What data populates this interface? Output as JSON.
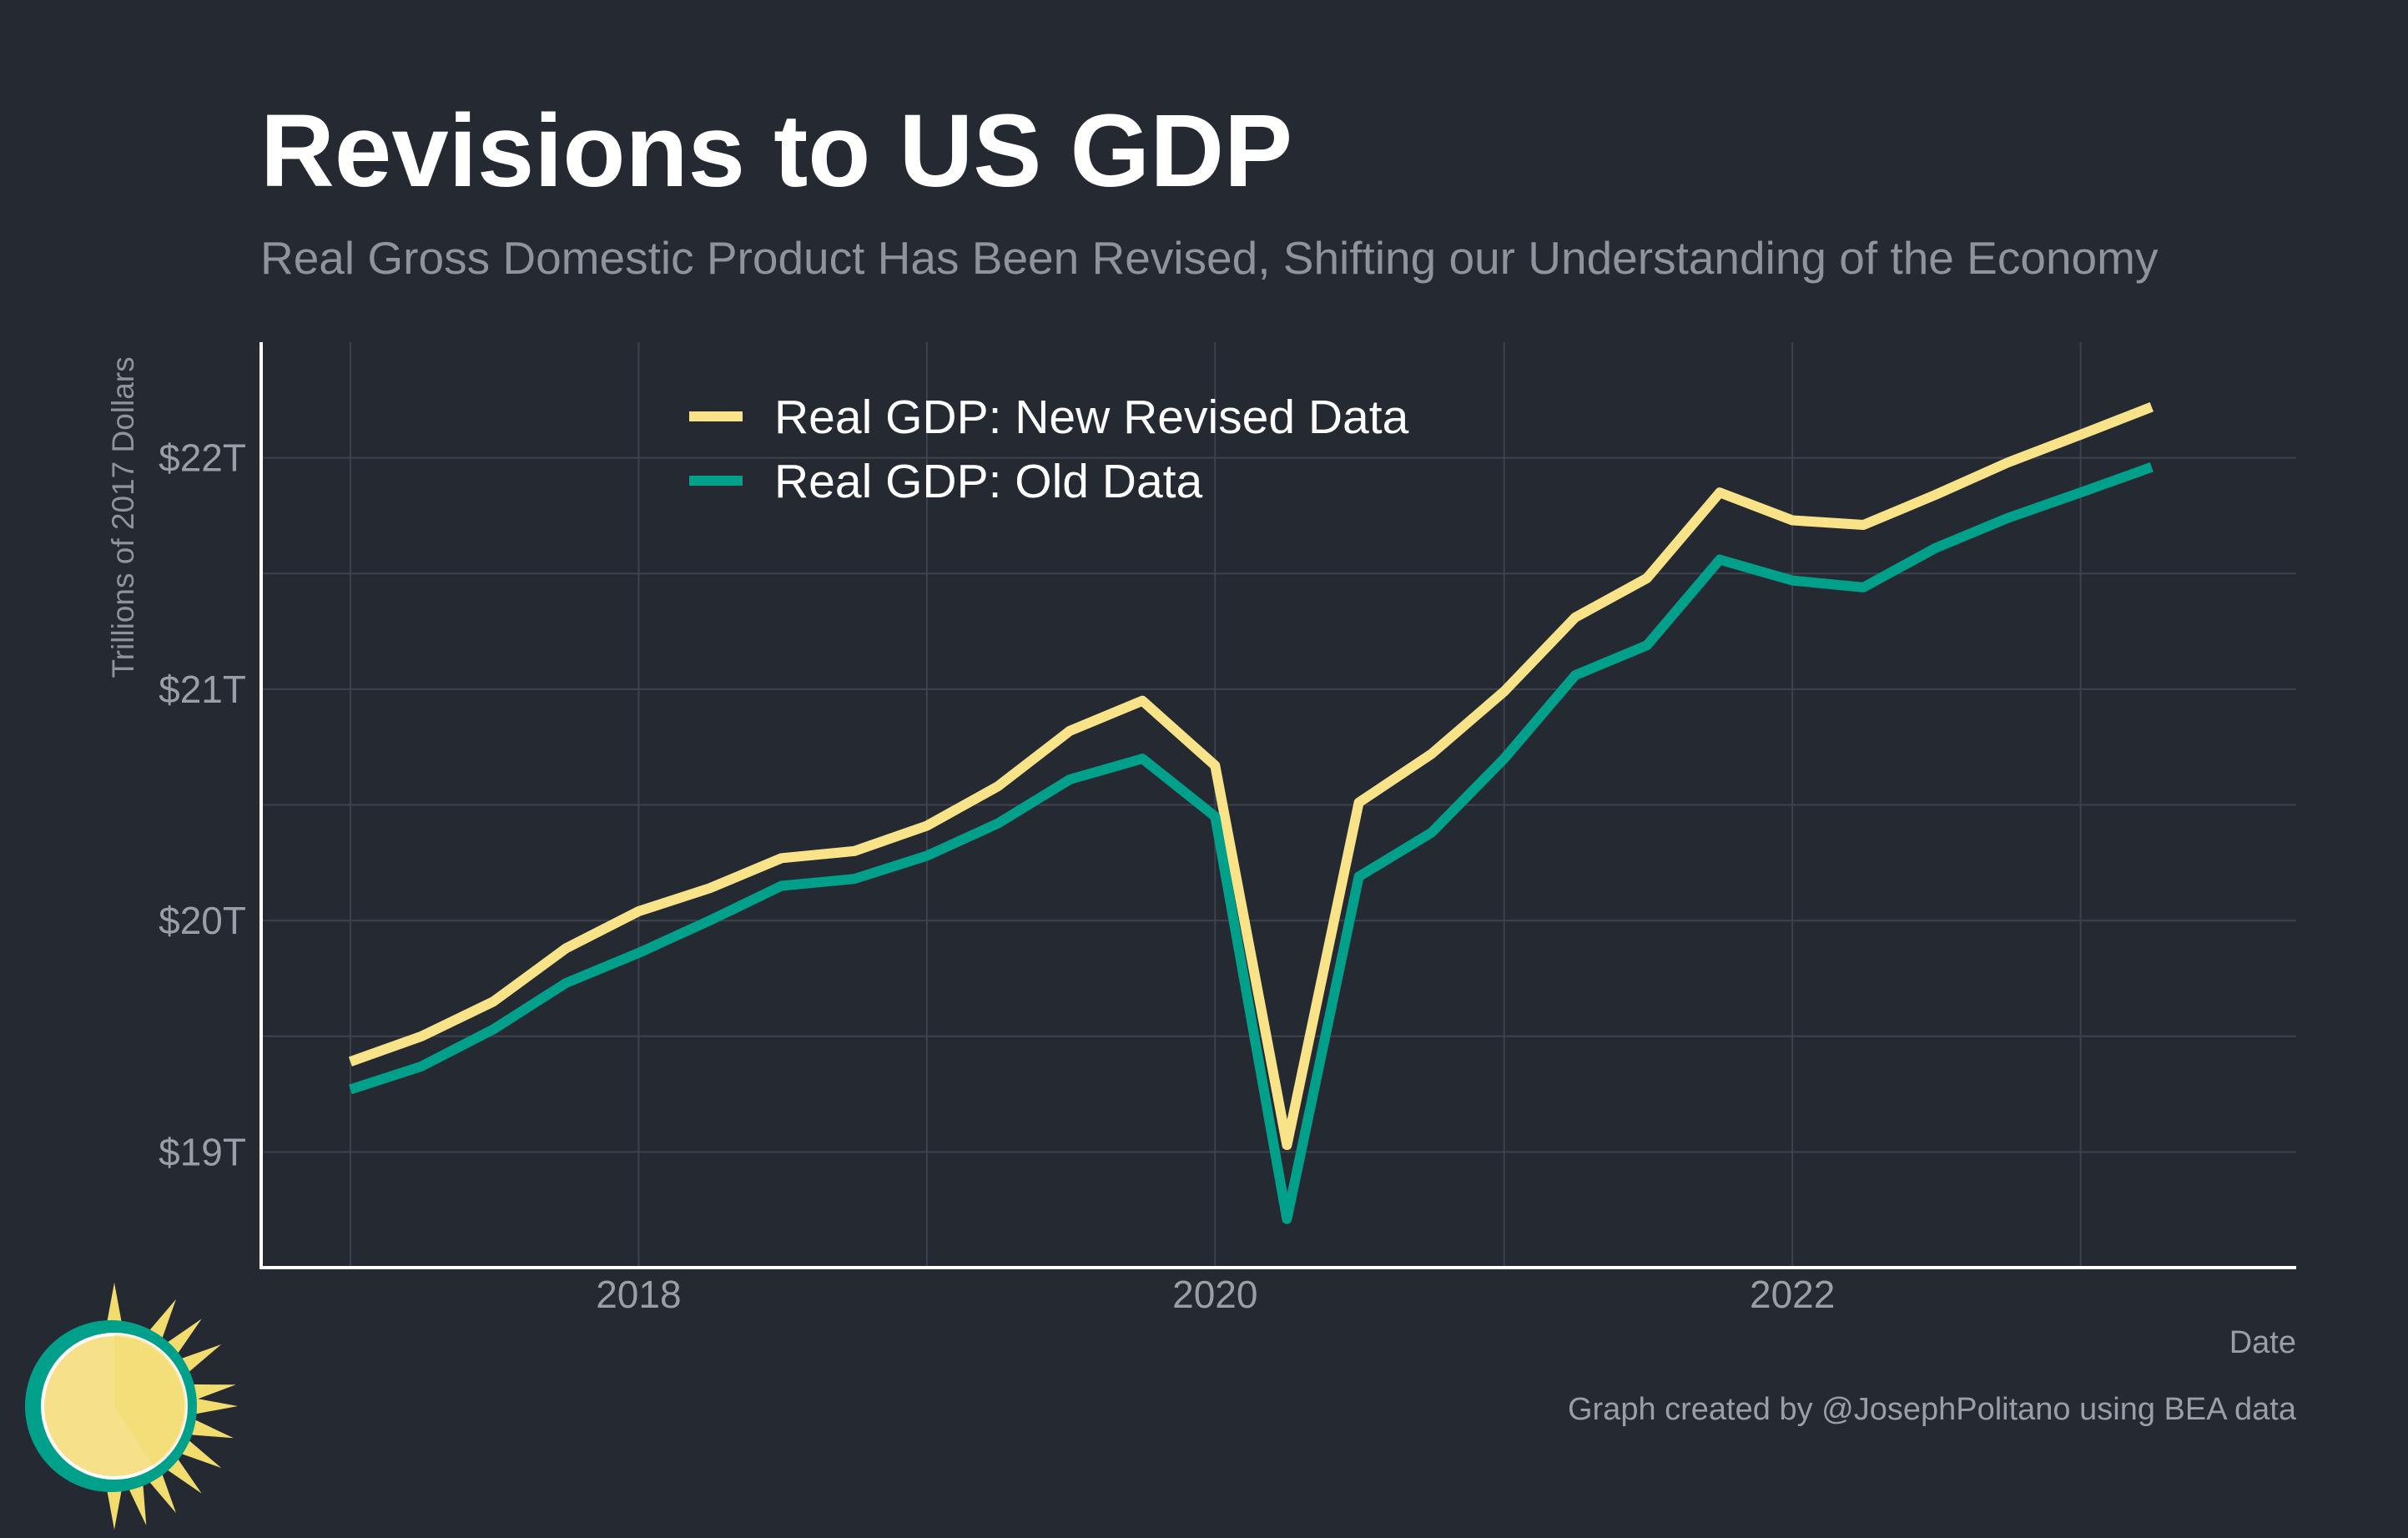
{
  "chart_data": {
    "type": "line",
    "title": "Revisions to US GDP",
    "subtitle": "Real Gross Domestic Product Has Been Revised, Shifting our Understanding of the Economy",
    "xlabel": "Date",
    "ylabel": "Trillions of 2017 Dollars",
    "caption": "Graph created by @JosephPolitano using BEA data",
    "xlim": [
      "2016-09-10",
      "2023-10-01"
    ],
    "ylim": [
      18.5,
      22.5
    ],
    "x_ticks": [
      {
        "value": "2018-01-01",
        "label": "2018"
      },
      {
        "value": "2020-01-01",
        "label": "2020"
      },
      {
        "value": "2022-01-01",
        "label": "2022"
      }
    ],
    "x_minor_ticks": [
      "2017-01-01",
      "2019-01-01",
      "2021-01-01",
      "2023-01-01"
    ],
    "y_ticks": [
      {
        "value": 19,
        "label": "$19T"
      },
      {
        "value": 20,
        "label": "$20T"
      },
      {
        "value": 21,
        "label": "$21T"
      },
      {
        "value": 22,
        "label": "$22T"
      }
    ],
    "y_minor_ticks": [
      19.5,
      20.5,
      21.5
    ],
    "grid": true,
    "legend_position": "top-left",
    "x": [
      "2017-01-01",
      "2017-04-01",
      "2017-07-01",
      "2017-10-01",
      "2018-01-01",
      "2018-04-01",
      "2018-07-01",
      "2018-10-01",
      "2019-01-01",
      "2019-04-01",
      "2019-07-01",
      "2019-10-01",
      "2020-01-01",
      "2020-04-01",
      "2020-07-01",
      "2020-10-01",
      "2021-01-01",
      "2021-04-01",
      "2021-07-01",
      "2021-10-01",
      "2022-01-01",
      "2022-04-01",
      "2022-07-01",
      "2022-10-01",
      "2023-01-01",
      "2023-04-01"
    ],
    "series": [
      {
        "name": "Real GDP: New Revised Data",
        "color": "#f9e388",
        "values": [
          19.39,
          19.5,
          19.65,
          19.88,
          20.04,
          20.14,
          20.27,
          20.3,
          20.41,
          20.58,
          20.82,
          20.95,
          20.67,
          19.03,
          20.51,
          20.72,
          20.99,
          21.31,
          21.48,
          21.85,
          21.73,
          21.71,
          21.84,
          21.98,
          22.1,
          22.22
        ]
      },
      {
        "name": "Real GDP: Old Data",
        "color": "#00a08a",
        "values": [
          19.27,
          19.37,
          19.53,
          19.73,
          19.86,
          20.0,
          20.15,
          20.18,
          20.28,
          20.42,
          20.61,
          20.7,
          20.45,
          18.71,
          20.19,
          20.38,
          20.7,
          21.06,
          21.19,
          21.56,
          21.47,
          21.44,
          21.61,
          21.74,
          21.85,
          21.96
        ]
      }
    ]
  },
  "logo": {
    "icon": "sun-icon",
    "ring_color": "#00a08a",
    "sun_color": "#f6e089",
    "ray_color": "#f3dc6e"
  }
}
